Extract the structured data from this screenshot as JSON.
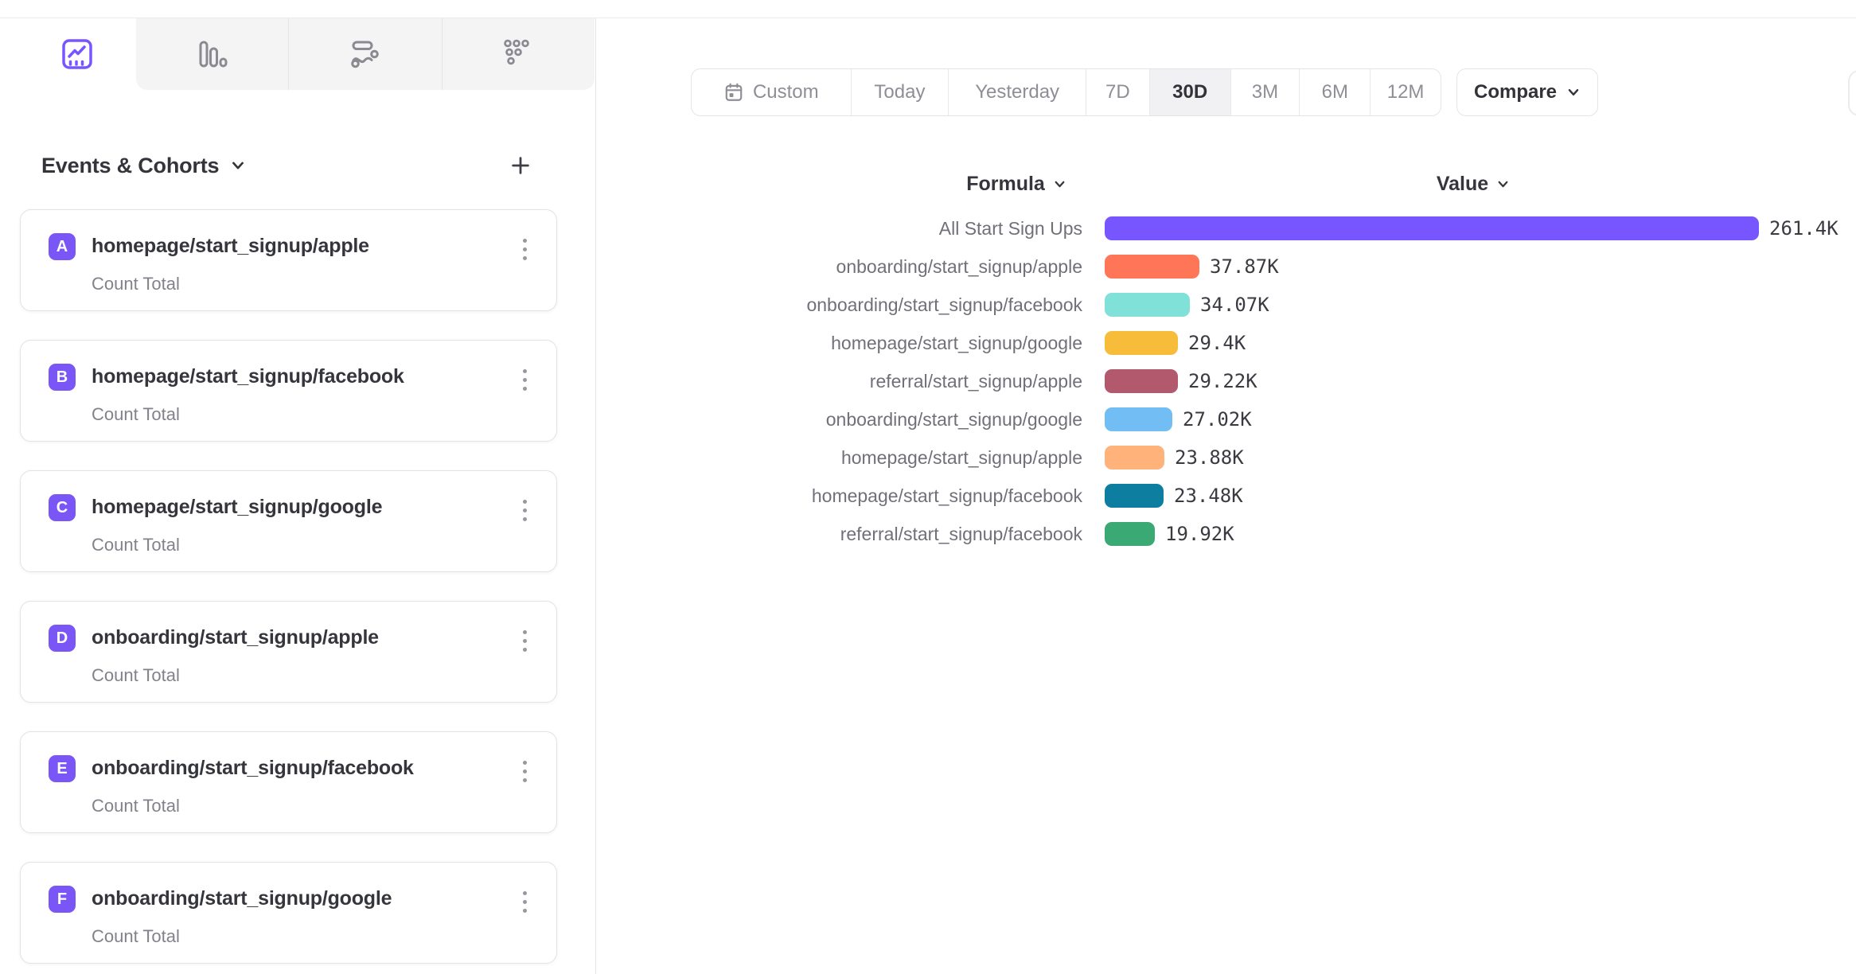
{
  "colors": {
    "accent_purple": "#7856FF",
    "sidebar_tab_strip_bg": "#f4f4f5",
    "border": "#e4e4e8",
    "selected_segment_bg": "#f1f1f3"
  },
  "sidebar": {
    "tabs": [
      {
        "icon": "insights-line-chart-icon",
        "selected": true
      },
      {
        "icon": "bar-chart-icon",
        "selected": false
      },
      {
        "icon": "flows-icon",
        "selected": false
      },
      {
        "icon": "funnel-dots-icon",
        "selected": false
      }
    ],
    "events_header_label": "Events & Cohorts",
    "events": [
      {
        "letter": "A",
        "name": "homepage/start_signup/apple",
        "metric": "Count Total"
      },
      {
        "letter": "B",
        "name": "homepage/start_signup/facebook",
        "metric": "Count Total"
      },
      {
        "letter": "C",
        "name": "homepage/start_signup/google",
        "metric": "Count Total"
      },
      {
        "letter": "D",
        "name": "onboarding/start_signup/apple",
        "metric": "Count Total"
      },
      {
        "letter": "E",
        "name": "onboarding/start_signup/facebook",
        "metric": "Count Total"
      },
      {
        "letter": "F",
        "name": "onboarding/start_signup/google",
        "metric": "Count Total"
      }
    ]
  },
  "toolbar": {
    "date_ranges": [
      "Custom",
      "Today",
      "Yesterday",
      "7D",
      "30D",
      "3M",
      "6M",
      "12M"
    ],
    "selected_range": "30D",
    "compare_label": "Compare"
  },
  "table": {
    "formula_label": "Formula",
    "value_label": "Value"
  },
  "chart_data": {
    "type": "bar",
    "orientation": "horizontal",
    "title": "",
    "xlabel": "",
    "ylabel": "",
    "legend": false,
    "grid": false,
    "max_value": 261400,
    "categories": [
      "All Start Sign Ups",
      "onboarding/start_signup/apple",
      "onboarding/start_signup/facebook",
      "homepage/start_signup/google",
      "referral/start_signup/apple",
      "onboarding/start_signup/google",
      "homepage/start_signup/apple",
      "homepage/start_signup/facebook",
      "referral/start_signup/facebook"
    ],
    "values": [
      261400,
      37870,
      34070,
      29400,
      29220,
      27020,
      23880,
      23480,
      19920
    ],
    "value_labels": [
      "261.4K",
      "37.87K",
      "34.07K",
      "29.4K",
      "29.22K",
      "27.02K",
      "23.88K",
      "23.48K",
      "19.92K"
    ],
    "bar_colors": [
      "#7856FF",
      "#FF7557",
      "#80E1D9",
      "#F8BC3B",
      "#B2596E",
      "#72BEF4",
      "#FFB27A",
      "#0D7EA0",
      "#3BA974"
    ]
  }
}
